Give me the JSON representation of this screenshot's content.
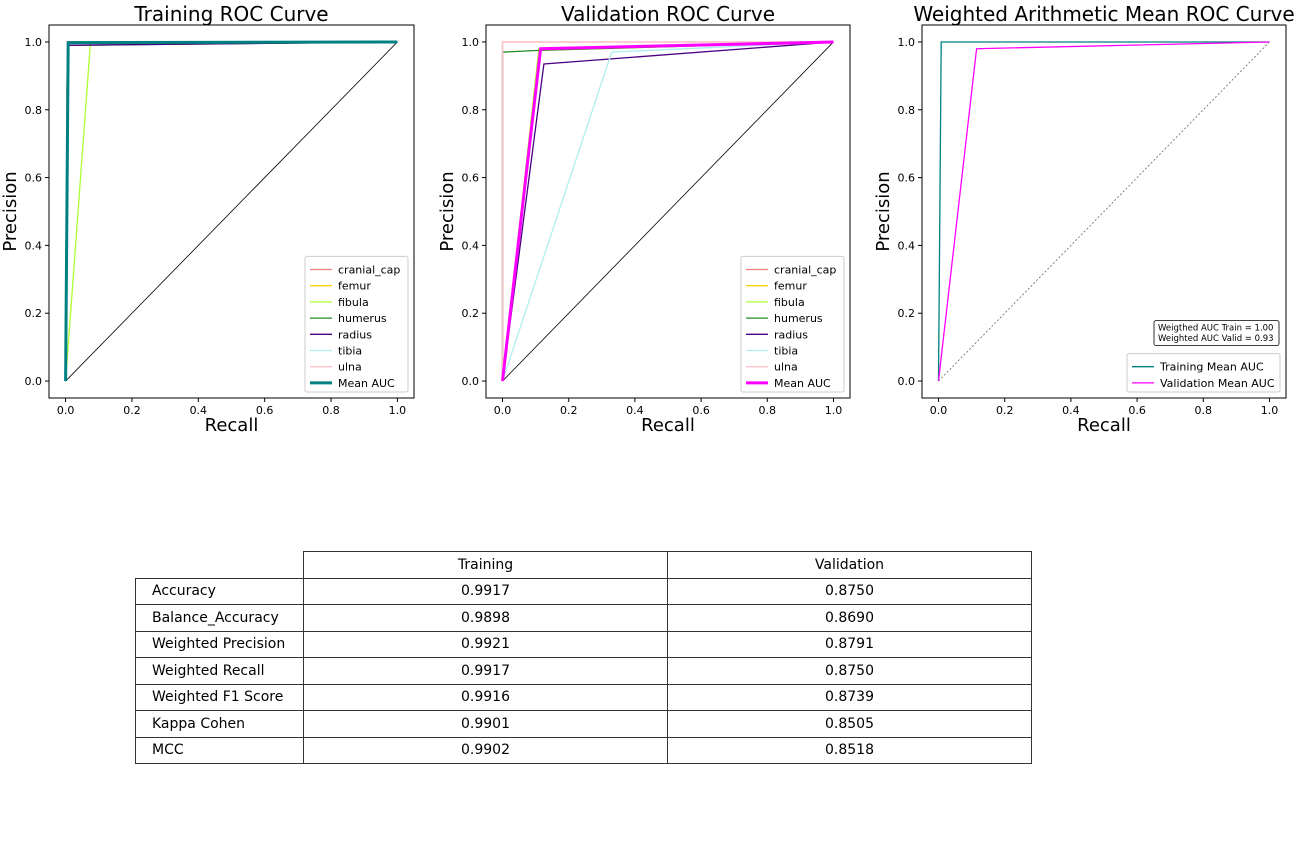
{
  "colors": {
    "cranial_cap": "#f08080",
    "femur": "#ffd700",
    "fibula": "#adff2f",
    "humerus": "#228b22",
    "radius": "#4b0082",
    "tibia": "#afeeee",
    "ulna": "#ffc0cb",
    "mean_train": "#008080",
    "mean_valid": "#ff00ff",
    "diagonal": "#000000"
  },
  "chart_data": [
    {
      "type": "line",
      "title": "Training ROC Curve",
      "xlabel": "Recall",
      "ylabel": "Precision",
      "xlim": [
        -0.05,
        1.05
      ],
      "ylim": [
        -0.05,
        1.05
      ],
      "xticks": [
        "0.0",
        "0.2",
        "0.4",
        "0.6",
        "0.8",
        "1.0"
      ],
      "yticks": [
        "0.0",
        "0.2",
        "0.4",
        "0.6",
        "0.8",
        "1.0"
      ],
      "legend_position": "lower-right",
      "series": [
        {
          "name": "cranial_cap",
          "color_key": "cranial_cap",
          "x": [
            0,
            0.005,
            1
          ],
          "y": [
            0,
            1.0,
            1.0
          ]
        },
        {
          "name": "femur",
          "color_key": "femur",
          "x": [
            0,
            0.005,
            1
          ],
          "y": [
            0,
            1.0,
            1.0
          ]
        },
        {
          "name": "fibula",
          "color_key": "fibula",
          "x": [
            0,
            0.075,
            1
          ],
          "y": [
            0,
            1.0,
            1.0
          ]
        },
        {
          "name": "humerus",
          "color_key": "humerus",
          "x": [
            0,
            0.005,
            1
          ],
          "y": [
            0,
            0.99,
            1.0
          ]
        },
        {
          "name": "radius",
          "color_key": "radius",
          "x": [
            0,
            0.005,
            1
          ],
          "y": [
            0,
            0.99,
            1.0
          ]
        },
        {
          "name": "tibia",
          "color_key": "tibia",
          "x": [
            0,
            0.005,
            1
          ],
          "y": [
            0,
            1.0,
            1.0
          ]
        },
        {
          "name": "ulna",
          "color_key": "ulna",
          "x": [
            0,
            0.005,
            1
          ],
          "y": [
            0,
            1.0,
            1.0
          ]
        },
        {
          "name": "Mean AUC",
          "color_key": "mean_train",
          "x": [
            0,
            0.008,
            1
          ],
          "y": [
            0,
            0.998,
            1.0
          ],
          "width": 3
        }
      ],
      "diagonal": true
    },
    {
      "type": "line",
      "title": "Validation ROC Curve",
      "xlabel": "Recall",
      "ylabel": "Precision",
      "xlim": [
        -0.05,
        1.05
      ],
      "ylim": [
        -0.05,
        1.05
      ],
      "xticks": [
        "0.0",
        "0.2",
        "0.4",
        "0.6",
        "0.8",
        "1.0"
      ],
      "yticks": [
        "0.0",
        "0.2",
        "0.4",
        "0.6",
        "0.8",
        "1.0"
      ],
      "legend_position": "lower-right",
      "series": [
        {
          "name": "cranial_cap",
          "color_key": "cranial_cap",
          "x": [
            0,
            0.0,
            1
          ],
          "y": [
            0,
            1.0,
            1.0
          ]
        },
        {
          "name": "femur",
          "color_key": "femur",
          "x": [
            0,
            0.11,
            1
          ],
          "y": [
            0,
            0.975,
            1.0
          ]
        },
        {
          "name": "fibula",
          "color_key": "fibula",
          "x": [
            0,
            0.11,
            1
          ],
          "y": [
            0,
            0.98,
            1.0
          ]
        },
        {
          "name": "humerus",
          "color_key": "humerus",
          "x": [
            0,
            0.0,
            0.11,
            1
          ],
          "y": [
            0,
            0.97,
            0.975,
            1.0
          ]
        },
        {
          "name": "radius",
          "color_key": "radius",
          "x": [
            0,
            0.125,
            1
          ],
          "y": [
            0,
            0.935,
            1.0
          ]
        },
        {
          "name": "tibia",
          "color_key": "tibia",
          "x": [
            0,
            0.33,
            1
          ],
          "y": [
            0,
            0.97,
            1.0
          ]
        },
        {
          "name": "ulna",
          "color_key": "ulna",
          "x": [
            0,
            0.0,
            1
          ],
          "y": [
            0,
            1.0,
            1.0
          ]
        },
        {
          "name": "Mean AUC",
          "color_key": "mean_valid",
          "x": [
            0,
            0.115,
            1
          ],
          "y": [
            0,
            0.98,
            1.0
          ],
          "width": 3
        }
      ],
      "diagonal": true
    },
    {
      "type": "line",
      "title": "Weighted Arithmetic Mean ROC Curve",
      "xlabel": "Recall",
      "ylabel": "Precision",
      "xlim": [
        -0.05,
        1.05
      ],
      "ylim": [
        -0.05,
        1.05
      ],
      "xticks": [
        "0.0",
        "0.2",
        "0.4",
        "0.6",
        "0.8",
        "1.0"
      ],
      "yticks": [
        "0.0",
        "0.2",
        "0.4",
        "0.6",
        "0.8",
        "1.0"
      ],
      "legend_position": "lower-right",
      "annotation": [
        "Weigthed AUC Train = 1.00",
        "Weighted AUC Valid = 0.93"
      ],
      "series": [
        {
          "name": "Training Mean AUC",
          "color_key": "mean_train",
          "x": [
            0,
            0.008,
            1
          ],
          "y": [
            0,
            1.0,
            1.0
          ]
        },
        {
          "name": "Validation Mean AUC",
          "color_key": "mean_valid",
          "x": [
            0,
            0.115,
            1
          ],
          "y": [
            0,
            0.98,
            1.0
          ]
        }
      ],
      "diagonal": true
    }
  ],
  "table": {
    "columns": [
      "Training",
      "Validation"
    ],
    "rows": [
      {
        "label": "Accuracy",
        "training": "0.9917",
        "validation": "0.8750"
      },
      {
        "label": "Balance_Accuracy",
        "training": "0.9898",
        "validation": "0.8690"
      },
      {
        "label": "Weighted Precision",
        "training": "0.9921",
        "validation": "0.8791"
      },
      {
        "label": "Weighted Recall",
        "training": "0.9917",
        "validation": "0.8750"
      },
      {
        "label": "Weighted F1 Score",
        "training": "0.9916",
        "validation": "0.8739"
      },
      {
        "label": "Kappa Cohen",
        "training": "0.9901",
        "validation": "0.8505"
      },
      {
        "label": "MCC",
        "training": "0.9902",
        "validation": "0.8518"
      }
    ]
  }
}
